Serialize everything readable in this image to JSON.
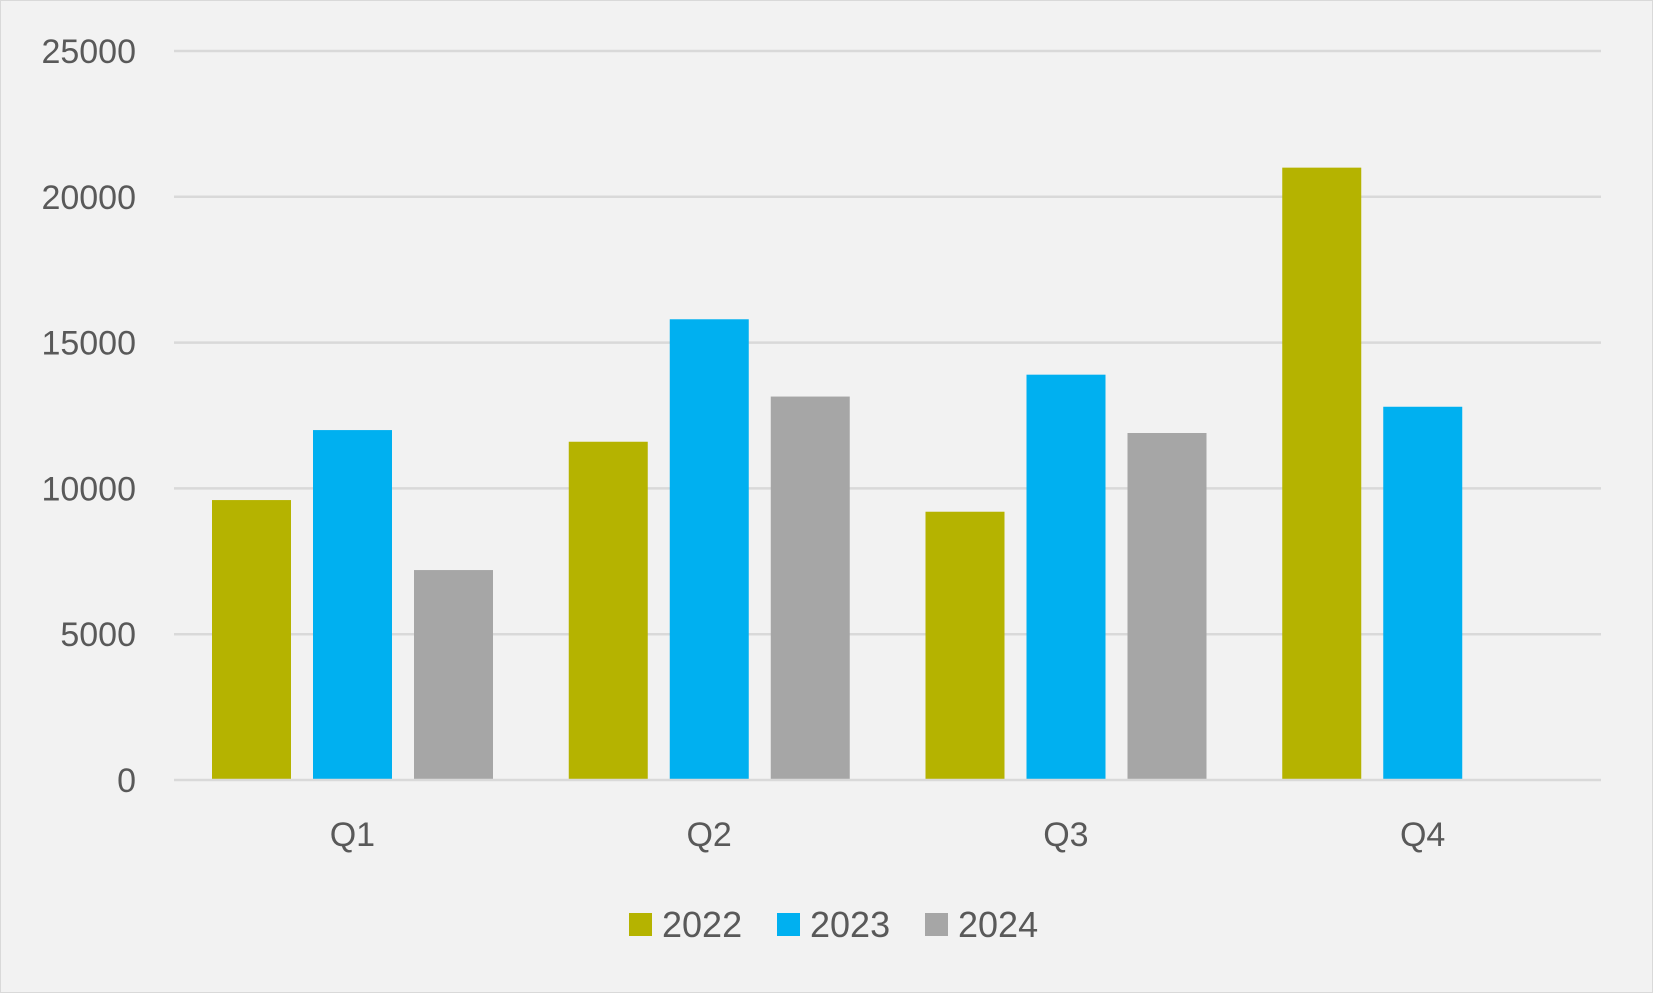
{
  "chart_data": {
    "type": "bar",
    "title": "",
    "xlabel": "",
    "ylabel": "",
    "categories": [
      "Q1",
      "Q2",
      "Q3",
      "Q4"
    ],
    "series": [
      {
        "name": "2022",
        "color": "#b5b300",
        "values": [
          9600,
          11600,
          9200,
          21000
        ]
      },
      {
        "name": "2023",
        "color": "#00b0f0",
        "values": [
          12000,
          15800,
          13900,
          12800
        ]
      },
      {
        "name": "2024",
        "color": "#a6a6a6",
        "values": [
          7200,
          13150,
          11900,
          null
        ]
      }
    ],
    "ylim": [
      0,
      25000
    ],
    "yticks": [
      0,
      5000,
      10000,
      15000,
      20000,
      25000
    ],
    "ytick_labels": [
      "0",
      "5000",
      "10000",
      "15000",
      "20000",
      "25000"
    ],
    "grid": true,
    "legend_position": "bottom-center",
    "background_color": "#f2f2f2",
    "gridline_color": "#d9d9d9",
    "text_color": "#595959"
  }
}
